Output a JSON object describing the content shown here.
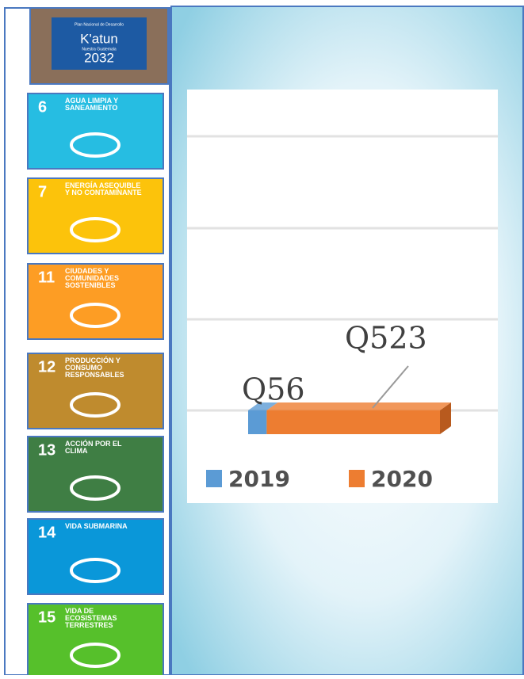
{
  "sidebar": {
    "logo": {
      "caption": "Plan Nacional de Desarrollo",
      "brand": "K'atun",
      "tagline": "Nuestra Guatemala",
      "year": "2032"
    },
    "goals": [
      {
        "number": "6",
        "label": "AGUA LIMPIA Y SANEAMIENTO",
        "color": "#26bde2"
      },
      {
        "number": "7",
        "label": "ENERGÍA ASEQUIBLE Y NO CONTAMINANTE",
        "color": "#fcc30b"
      },
      {
        "number": "11",
        "label": "CIUDADES Y COMUNIDADES SOSTENIBLES",
        "color": "#fd9d24"
      },
      {
        "number": "12",
        "label": "PRODUCCIÓN Y CONSUMO RESPONSABLES",
        "color": "#bf8b2e"
      },
      {
        "number": "13",
        "label": "ACCIÓN POR EL CLIMA",
        "color": "#3f7e44"
      },
      {
        "number": "14",
        "label": "VIDA SUBMARINA",
        "color": "#0a97d9"
      },
      {
        "number": "15",
        "label": "VIDA DE ECOSISTEMAS TERRESTRES",
        "color": "#56c02b"
      }
    ]
  },
  "chart_data": {
    "type": "bar",
    "orientation": "horizontal",
    "stacked": true,
    "categories": [
      null
    ],
    "series": [
      {
        "name": "2019",
        "color": "#5b9bd5",
        "values": [
          56
        ],
        "value_labels": [
          "Q56"
        ]
      },
      {
        "name": "2020",
        "color": "#ed7d31",
        "values": [
          523
        ],
        "value_labels": [
          "Q523"
        ]
      }
    ]
  }
}
